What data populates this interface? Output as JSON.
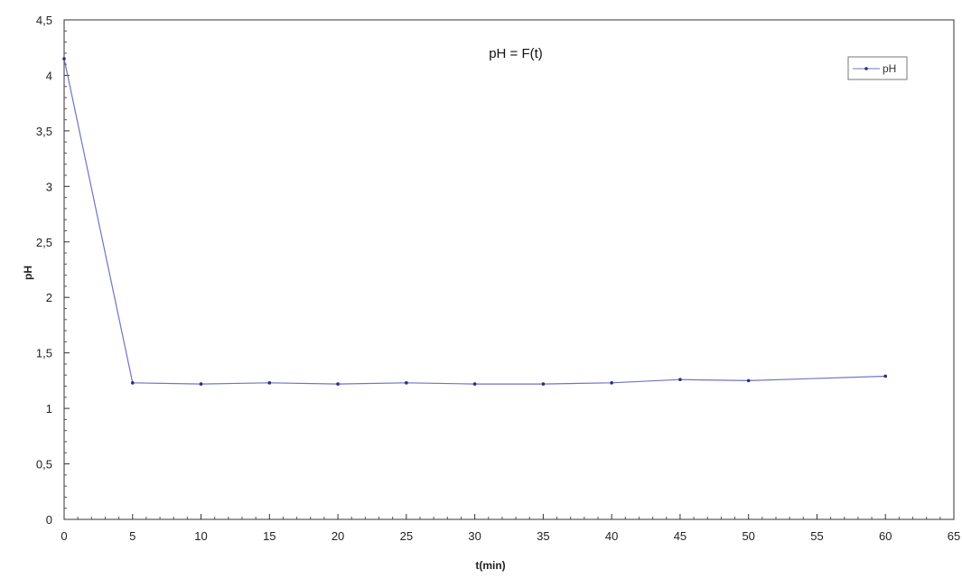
{
  "chart_data": {
    "type": "line",
    "title": "pH = F(t)",
    "xlabel": "t(min)",
    "ylabel": "pH",
    "xlim": [
      0,
      65
    ],
    "ylim": [
      0,
      4.5
    ],
    "x_ticks": [
      "0",
      "5",
      "10",
      "15",
      "20",
      "25",
      "30",
      "35",
      "40",
      "45",
      "50",
      "55",
      "60",
      "65"
    ],
    "y_ticks": [
      "0",
      "0,5",
      "1",
      "1,5",
      "2",
      "2,5",
      "3",
      "3,5",
      "4",
      "4,5"
    ],
    "grid": false,
    "legend_position": "top-right",
    "series": [
      {
        "name": "pH",
        "color": "#6f74c4",
        "marker_color": "#2a2f7a",
        "x": [
          0,
          5,
          10,
          15,
          20,
          25,
          30,
          35,
          40,
          45,
          50,
          60
        ],
        "y": [
          4.15,
          1.23,
          1.22,
          1.23,
          1.22,
          1.23,
          1.22,
          1.22,
          1.23,
          1.26,
          1.25,
          1.29
        ]
      }
    ]
  }
}
